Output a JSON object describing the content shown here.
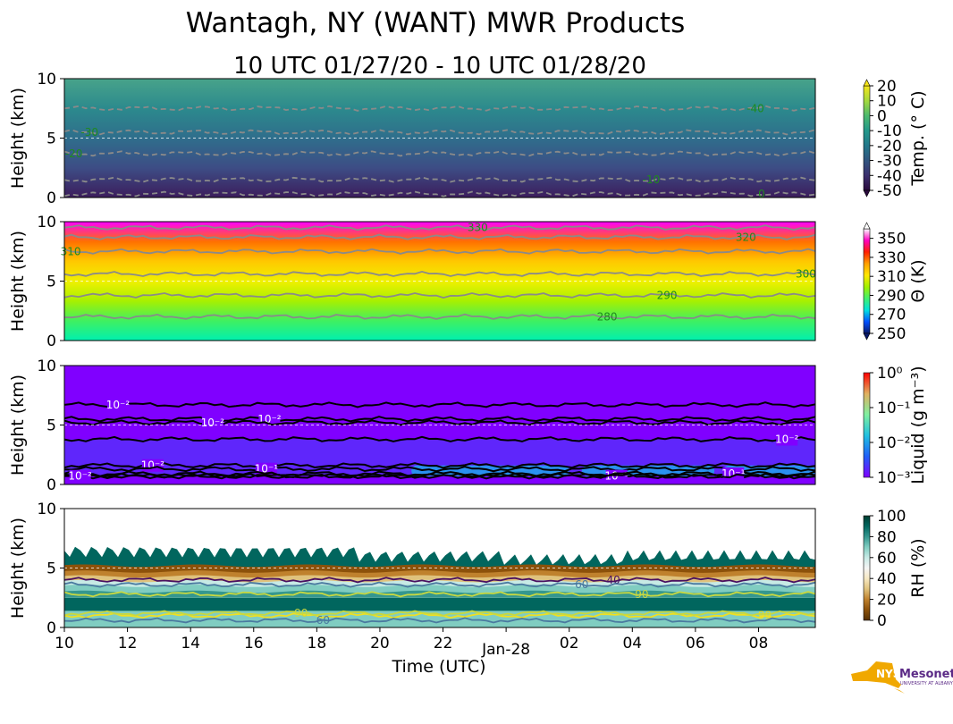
{
  "title": "Wantagh, NY (WANT) MWR Products",
  "subtitle": "10 UTC 01/27/20 - 10 UTC 01/28/20",
  "logo_text": "NYS Mesonet UNIVERSITY AT ALBANY",
  "chart_data": [
    {
      "type": "heatmap",
      "name": "temperature",
      "ylabel": "Height (km)",
      "ylim": [
        0,
        10
      ],
      "yticks": [
        "0",
        "5",
        "10"
      ],
      "xlim_hours": [
        0,
        23.8
      ],
      "colorbar": {
        "label": "Temp. (° C)",
        "ticks": [
          "20",
          "10",
          "0",
          "-10",
          "-20",
          "-30",
          "-40",
          "-50"
        ],
        "range": [
          -50,
          20
        ],
        "colors": [
          "#2b0a3d",
          "#3b2f6e",
          "#31557f",
          "#22778a",
          "#23988a",
          "#4cb96e",
          "#a4d93e",
          "#f5e51b"
        ]
      },
      "background": [
        "#3c1d5c",
        "#3d4d85",
        "#2f6e8c",
        "#2c8a8d",
        "#48a38a"
      ],
      "contour_style": "dashed",
      "contour_color": "#8a8a8a",
      "contours": [
        {
          "level": "-40",
          "height": 7.5,
          "label_hour": 21.9
        },
        {
          "level": "-30",
          "height": 5.5,
          "label_hour": 0.8
        },
        {
          "level": "-20",
          "height": 3.7,
          "label_hour": 0.3
        },
        {
          "level": "-10",
          "height": 1.5,
          "label_hour": 18.6
        },
        {
          "level": "0",
          "height": 0.3,
          "label_hour": 22.1
        }
      ],
      "label_color": "#1f8a1f"
    },
    {
      "type": "heatmap",
      "name": "theta",
      "ylabel": "Height (km)",
      "ylim": [
        0,
        10
      ],
      "yticks": [
        "0",
        "5",
        "10"
      ],
      "xlim_hours": [
        0,
        23.8
      ],
      "colorbar": {
        "label": "Θ (K)",
        "ticks": [
          "350",
          "330",
          "310",
          "290",
          "270",
          "250"
        ],
        "range": [
          250,
          360
        ],
        "colors": [
          "#0a1a6a",
          "#0050ff",
          "#00e0e0",
          "#40f070",
          "#a0f000",
          "#ffe800",
          "#ffa000",
          "#ff2000",
          "#ff00c0",
          "#ffffff"
        ]
      },
      "background": [
        "#00f0b0",
        "#40f060",
        "#a8f000",
        "#f0f000",
        "#ffc800",
        "#ff7000",
        "#ff00ff"
      ],
      "contour_style": "solid",
      "contour_color": "#8a8a8a",
      "contours": [
        {
          "level": "330",
          "height": 9.5,
          "label_hour": 13.1
        },
        {
          "level": "320",
          "height": 8.7,
          "label_hour": 21.6
        },
        {
          "level": "310",
          "height": 7.5,
          "label_hour": 0.2
        },
        {
          "level": "300",
          "height": 5.6,
          "label_hour": 23.5
        },
        {
          "level": "290",
          "height": 3.8,
          "label_hour": 19.1
        },
        {
          "level": "280",
          "height": 2.0,
          "label_hour": 17.2
        }
      ],
      "label_color": "#1f8a1f"
    },
    {
      "type": "heatmap",
      "name": "liquid",
      "ylabel": "Height (km)",
      "ylim": [
        0,
        10
      ],
      "yticks": [
        "0",
        "5",
        "10"
      ],
      "xlim_hours": [
        0,
        23.8
      ],
      "colorbar": {
        "label": "Liquid (g m⁻³)",
        "ticks": [
          "10⁰",
          "10⁻¹",
          "10⁻²",
          "10⁻³"
        ],
        "range": [
          0.001,
          1
        ],
        "scale": "log",
        "colors": [
          "#8000ff",
          "#2060f8",
          "#20c0e0",
          "#80f0a0",
          "#e0b060",
          "#ff0000"
        ]
      },
      "background": [
        "#8000ff"
      ],
      "contour_style": "solid",
      "contour_color": "#000000",
      "contours": [
        {
          "level": "10⁻²",
          "height": 6.7,
          "label_hour": 1.7
        },
        {
          "level": "10⁻²",
          "height": 5.5,
          "label_hour": 6.5
        },
        {
          "level": "10⁻²",
          "height": 5.2,
          "label_hour": 4.7
        },
        {
          "level": "10⁻²",
          "height": 3.8,
          "label_hour": 22.9
        },
        {
          "level": "10⁻²",
          "height": 1.6,
          "label_hour": 2.8
        },
        {
          "level": "10⁻¹",
          "height": 1.3,
          "label_hour": 6.4
        },
        {
          "level": "10⁻¹",
          "height": 0.7,
          "label_hour": 17.5
        },
        {
          "level": "10⁻¹",
          "height": 0.9,
          "label_hour": 21.2
        },
        {
          "level": "10⁻²",
          "height": 0.7,
          "label_hour": 0.5
        }
      ],
      "label_color": "#ffffff"
    },
    {
      "type": "heatmap",
      "name": "rh",
      "ylabel": "Height (km)",
      "ylim": [
        0,
        10
      ],
      "yticks": [
        "0",
        "5",
        "10"
      ],
      "xlim_hours": [
        0,
        23.8
      ],
      "xlabel": "Time (UTC)",
      "xticks": [
        "10",
        "12",
        "14",
        "16",
        "18",
        "20",
        "22",
        "Jan-28",
        "02",
        "04",
        "06",
        "08"
      ],
      "colorbar": {
        "label": "RH (%)",
        "ticks": [
          "100",
          "80",
          "60",
          "40",
          "20",
          "0"
        ],
        "range": [
          0,
          100
        ],
        "colors": [
          "#543005",
          "#8c510a",
          "#bf812d",
          "#dfc27d",
          "#f6e8c3",
          "#f5f5f5",
          "#c7eae5",
          "#80cdc1",
          "#35978f",
          "#01665e",
          "#003c30"
        ]
      },
      "background": [
        "#01665e"
      ],
      "contour_style": "solid",
      "contour_color": "#2a4a7a",
      "contours": [
        {
          "level": "40",
          "height": 4.0,
          "label_hour": 17.4,
          "color": "#4a1060"
        },
        {
          "level": "60",
          "height": 3.6,
          "label_hour": 16.4,
          "color": "#4a7aa0"
        },
        {
          "level": "90",
          "height": 2.8,
          "label_hour": 18.3,
          "color": "#c8d840"
        },
        {
          "level": "99",
          "height": 1.0,
          "label_hour": 22.2,
          "color": "#f0e020"
        },
        {
          "level": "90",
          "height": 1.2,
          "label_hour": 7.5,
          "color": "#c8d840"
        },
        {
          "level": "60",
          "height": 0.6,
          "label_hour": 8.2,
          "color": "#4a7aa0"
        }
      ],
      "label_color": "#ffffff"
    }
  ]
}
